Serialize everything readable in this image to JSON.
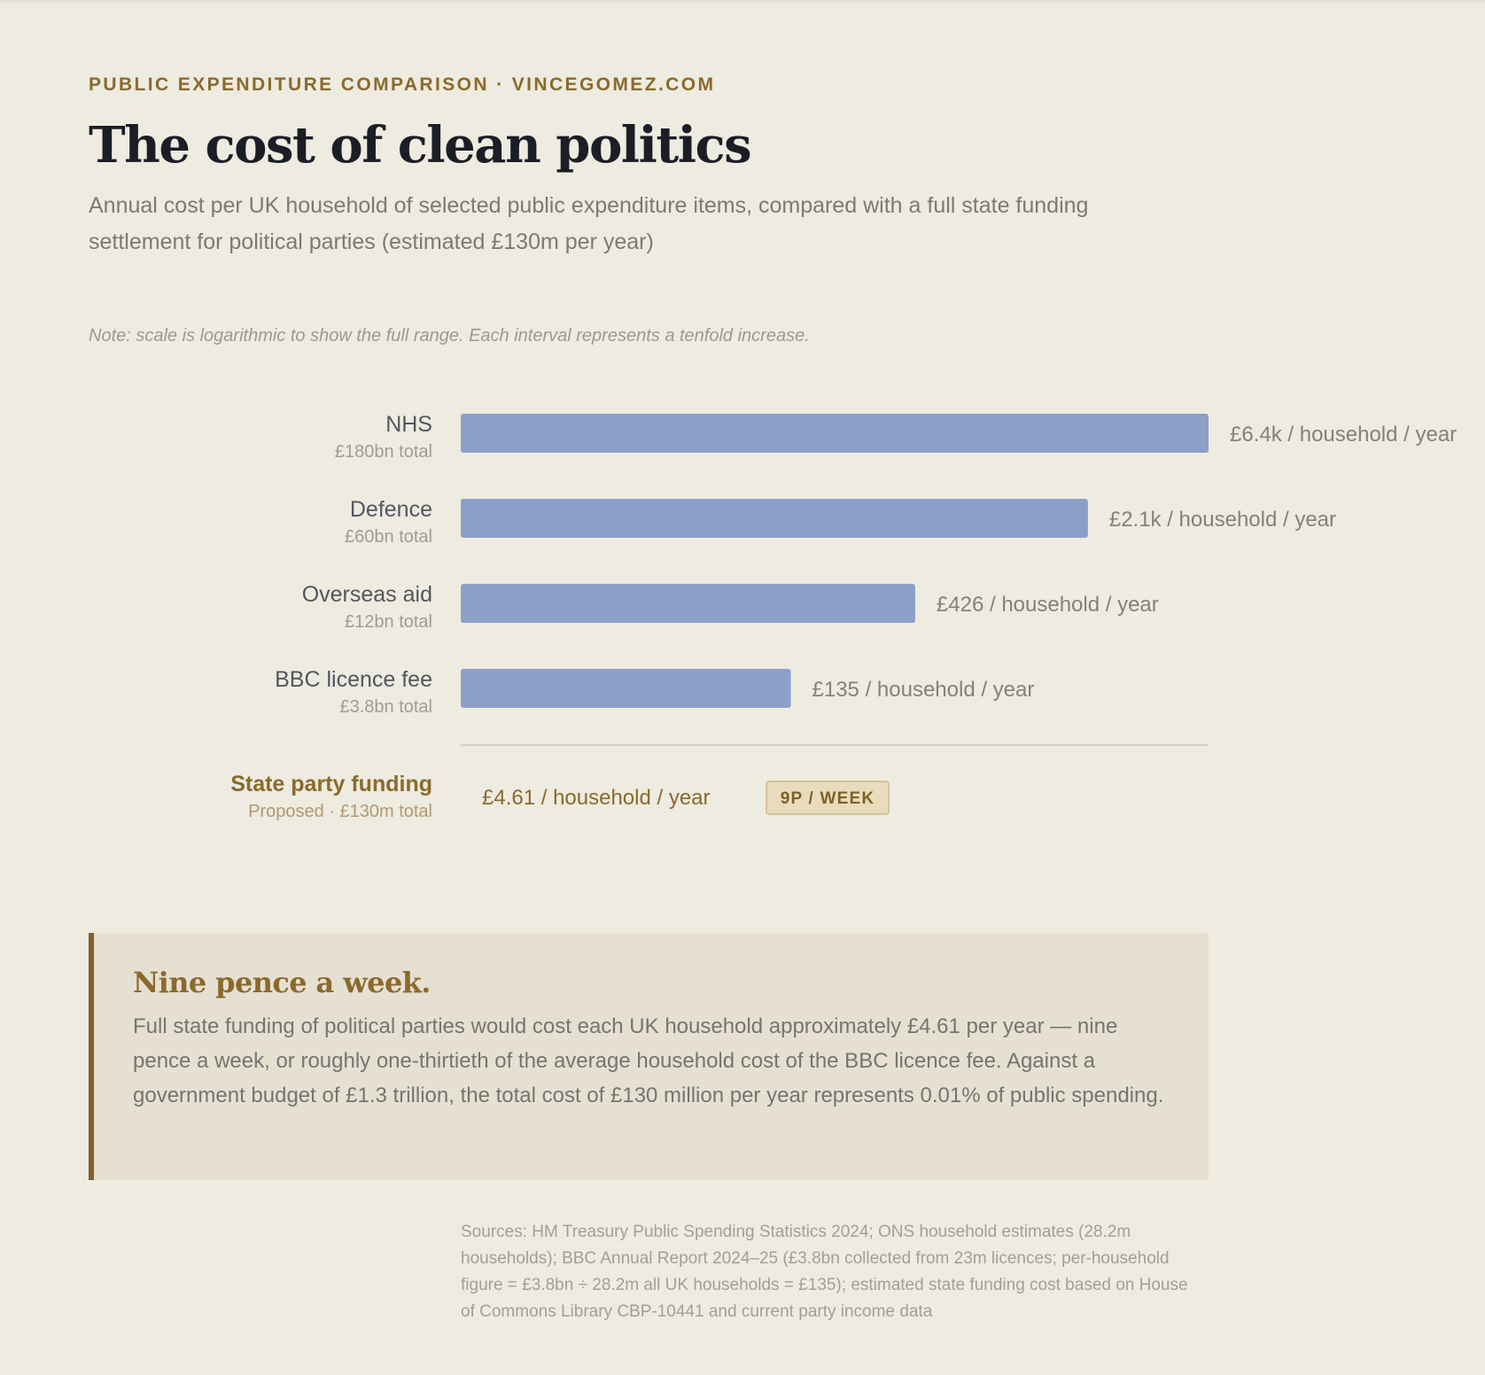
{
  "header": {
    "kicker": "PUBLIC EXPENDITURE COMPARISON · VINCEGOMEZ.COM",
    "title": "The cost of clean politics",
    "subtitle": "Annual cost per UK household of selected public expenditure items, compared with a full state funding settlement for political parties (estimated £130m per year)",
    "note": "Note: scale is logarithmic to show the full range. Each interval represents a tenfold increase."
  },
  "chart_data": {
    "type": "bar",
    "orientation": "horizontal",
    "scale": "log",
    "categories": [
      "NHS",
      "Defence",
      "Overseas aid",
      "BBC licence fee"
    ],
    "totals": [
      "£180bn total",
      "£60bn total",
      "£12bn total",
      "£3.8bn total"
    ],
    "values": [
      6400,
      2100,
      426,
      135
    ],
    "value_labels": [
      "£6.4k / household / year",
      "£2.1k / household / year",
      "£426 / household / year",
      "£135 / household / year"
    ],
    "unit": "£ per household per year",
    "bar_color": "#8c9fc8",
    "highlight": {
      "label": "State party funding",
      "sub": "Proposed · £130m total",
      "value": 4.61,
      "value_label": "£4.61 / household / year",
      "badge": "9P / WEEK",
      "color": "#8a6a2c"
    }
  },
  "callout": {
    "title": "Nine pence a week.",
    "body": "Full state funding of political parties would cost each UK household approximately £4.61 per year — nine pence a week, or roughly one-thirtieth of the average household cost of the BBC licence fee. Against a government budget of £1.3 trillion, the total cost of £130 million per year represents 0.01% of public spending."
  },
  "sources": "Sources: HM Treasury Public Spending Statistics 2024; ONS household estimates (28.2m households); BBC Annual Report 2024–25 (£3.8bn collected from 23m licences; per-household figure = £3.8bn ÷ 28.2m all UK households = £135); estimated state funding cost based on House of Commons Library CBP-10441 and current party income data"
}
